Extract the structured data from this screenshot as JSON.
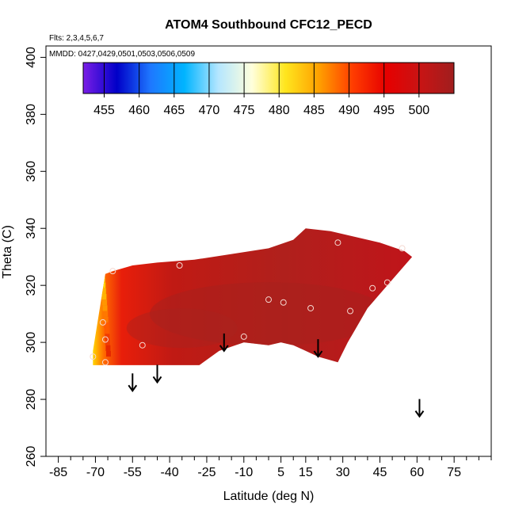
{
  "chart_data": {
    "type": "heatmap",
    "title": "ATOM4 Southbound CFC12_PECD",
    "flights_label": "Flts: 2,3,4,5,6,7",
    "dates_label": "MMDD: 0427,0429,0501,0503,0506,0509",
    "xlabel": "Latitude (deg N)",
    "ylabel": "Theta (C)",
    "xlim": [
      -90,
      90
    ],
    "ylim": [
      260,
      404
    ],
    "x_ticks": [
      {
        "value": -85,
        "label": "-85"
      },
      {
        "value": -70,
        "label": "-70"
      },
      {
        "value": -55,
        "label": "-55"
      },
      {
        "value": -40,
        "label": "-40"
      },
      {
        "value": -25,
        "label": "-25"
      },
      {
        "value": -10,
        "label": "-10"
      },
      {
        "value": 5,
        "label": "5"
      },
      {
        "value": 15,
        "label": "15"
      },
      {
        "value": 30,
        "label": "30"
      },
      {
        "value": 45,
        "label": "45"
      },
      {
        "value": 60,
        "label": "60"
      },
      {
        "value": 75,
        "label": "75"
      }
    ],
    "y_ticks": [
      {
        "value": 260,
        "label": "260"
      },
      {
        "value": 280,
        "label": "280"
      },
      {
        "value": 300,
        "label": "300"
      },
      {
        "value": 320,
        "label": "320"
      },
      {
        "value": 340,
        "label": "340"
      },
      {
        "value": 360,
        "label": "360"
      },
      {
        "value": 380,
        "label": "380"
      },
      {
        "value": 400,
        "label": "400"
      }
    ],
    "colorbar": {
      "range": [
        452,
        505
      ],
      "ticks": [
        {
          "value": 455,
          "label": "455"
        },
        {
          "value": 460,
          "label": "460"
        },
        {
          "value": 465,
          "label": "465"
        },
        {
          "value": 470,
          "label": "470"
        },
        {
          "value": 475,
          "label": "475"
        },
        {
          "value": 480,
          "label": "480"
        },
        {
          "value": 485,
          "label": "485"
        },
        {
          "value": 490,
          "label": "490"
        },
        {
          "value": 495,
          "label": "495"
        },
        {
          "value": 500,
          "label": "500"
        }
      ],
      "colors": [
        "#7a1ee6",
        "#0000c8",
        "#1e78ff",
        "#00b4ff",
        "#b4e6ff",
        "#ffffdc",
        "#ffe61e",
        "#ffa000",
        "#ff3c00",
        "#e60000",
        "#c81414",
        "#a01e1e"
      ]
    },
    "field_outline": [
      [
        -71,
        292
      ],
      [
        -71,
        297
      ],
      [
        -66,
        324
      ],
      [
        -63,
        325
      ],
      [
        -55,
        327
      ],
      [
        -45,
        328
      ],
      [
        -30,
        329
      ],
      [
        -15,
        331
      ],
      [
        0,
        333
      ],
      [
        10,
        336
      ],
      [
        15,
        340
      ],
      [
        25,
        339
      ],
      [
        35,
        337
      ],
      [
        45,
        335
      ],
      [
        55,
        332
      ],
      [
        58,
        330
      ],
      [
        50,
        322
      ],
      [
        40,
        312
      ],
      [
        32,
        300
      ],
      [
        28,
        293
      ],
      [
        20,
        295
      ],
      [
        10,
        299
      ],
      [
        5,
        300
      ],
      [
        0,
        299
      ],
      [
        -10,
        300
      ],
      [
        -20,
        297
      ],
      [
        -28,
        292
      ],
      [
        -45,
        292
      ],
      [
        -60,
        292
      ]
    ],
    "field_values": [
      {
        "lat": -68,
        "theta": 322,
        "value": 488
      },
      {
        "lat": -65,
        "theta": 315,
        "value": 495
      },
      {
        "lat": -62,
        "theta": 305,
        "value": 498
      },
      {
        "lat": -55,
        "theta": 315,
        "value": 500
      },
      {
        "lat": -30,
        "theta": 310,
        "value": 503
      },
      {
        "lat": 0,
        "theta": 315,
        "value": 504
      },
      {
        "lat": 30,
        "theta": 320,
        "value": 503
      },
      {
        "lat": 45,
        "theta": 330,
        "value": 500
      }
    ],
    "sample_points": [
      {
        "lat": -71,
        "theta": 295
      },
      {
        "lat": -66,
        "theta": 293
      },
      {
        "lat": -67,
        "theta": 307
      },
      {
        "lat": -66,
        "theta": 301
      },
      {
        "lat": -63,
        "theta": 325
      },
      {
        "lat": -51,
        "theta": 299
      },
      {
        "lat": -36,
        "theta": 327
      },
      {
        "lat": -10,
        "theta": 302
      },
      {
        "lat": 0,
        "theta": 315
      },
      {
        "lat": 6,
        "theta": 314
      },
      {
        "lat": 17,
        "theta": 312
      },
      {
        "lat": 28,
        "theta": 335
      },
      {
        "lat": 33,
        "theta": 311
      },
      {
        "lat": 42,
        "theta": 319
      },
      {
        "lat": 48,
        "theta": 321
      },
      {
        "lat": 54,
        "theta": 333
      }
    ],
    "arrows": [
      {
        "lat": -55,
        "theta": 283
      },
      {
        "lat": -45,
        "theta": 286
      },
      {
        "lat": -18,
        "theta": 297
      },
      {
        "lat": 20,
        "theta": 295
      },
      {
        "lat": 61,
        "theta": 274
      }
    ]
  }
}
